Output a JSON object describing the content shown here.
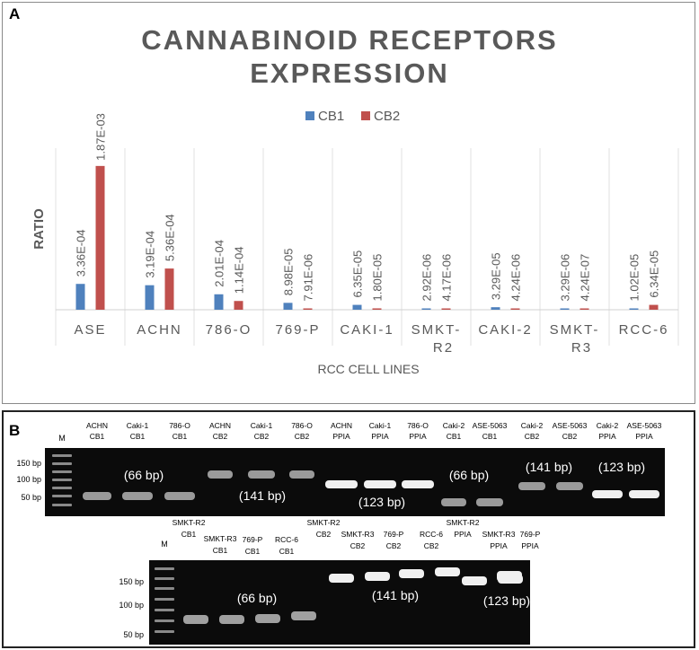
{
  "panel_a": {
    "label": "A",
    "chart_data": {
      "type": "bar",
      "title_lines": [
        "CANNABINOID RECEPTORS",
        "EXPRESSION"
      ],
      "xlabel": "RCC CELL LINES",
      "ylabel": "RATIO",
      "grid": "vertical category separators",
      "legend_position": "top-center",
      "categories": [
        "ASE",
        "ACHN",
        "786-O",
        "769-P",
        "CAKI-1",
        "SMKT-R2",
        "CAKI-2",
        "SMKT-R3",
        "RCC-6"
      ],
      "category_display": [
        [
          "ASE"
        ],
        [
          "ACHN"
        ],
        [
          "786-O"
        ],
        [
          "769-P"
        ],
        [
          "CAKI-1"
        ],
        [
          "SMKT-",
          "R2"
        ],
        [
          "CAKI-2"
        ],
        [
          "SMKT-",
          "R3"
        ],
        [
          "RCC-6"
        ]
      ],
      "ylim": [
        0,
        0.00188
      ],
      "series": [
        {
          "name": "CB1",
          "color": "#4f81bd",
          "values": [
            0.000336,
            0.000319,
            0.000201,
            8.98e-05,
            6.35e-05,
            2.92e-06,
            3.29e-05,
            3.29e-06,
            1.02e-05
          ],
          "labels": [
            "3.36E-04",
            "3.19E-04",
            "2.01E-04",
            "8.98E-05",
            "6.35E-05",
            "2.92E-06",
            "3.29E-05",
            "3.29E-06",
            "1.02E-05"
          ]
        },
        {
          "name": "CB2",
          "color": "#c0504d",
          "values": [
            0.00187,
            0.000536,
            0.000114,
            7.91e-06,
            1.8e-05,
            4.17e-06,
            4.24e-06,
            4.24e-07,
            6.34e-05
          ],
          "labels": [
            "1.87E-03",
            "5.36E-04",
            "1.14E-04",
            "7.91E-06",
            "1.80E-05",
            "4.17E-06",
            "4.24E-06",
            "4.24E-07",
            "6.34E-05"
          ]
        }
      ]
    }
  },
  "panel_b": {
    "label": "B",
    "gel1": {
      "marker": "M",
      "ladder": [
        "150 bp",
        "100 bp",
        "50 bp"
      ],
      "lanes": [
        [
          "ACHN",
          "CB1"
        ],
        [
          "Caki-1",
          "CB1"
        ],
        [
          "786-O",
          "CB1"
        ],
        [
          "ACHN",
          "CB2"
        ],
        [
          "Caki-1",
          "CB2"
        ],
        [
          "786-O",
          "CB2"
        ],
        [
          "ACHN",
          "PPIA"
        ],
        [
          "Caki-1",
          "PPIA"
        ],
        [
          "786-O",
          "PPIA"
        ],
        [
          "Caki-2",
          "CB1"
        ],
        [
          "ASE-5063",
          "CB1"
        ],
        [
          "Caki-2",
          "CB2"
        ],
        [
          "ASE-5063",
          "CB2"
        ],
        [
          "Caki-2",
          "PPIA"
        ],
        [
          "ASE-5063",
          "PPIA"
        ]
      ],
      "sizes": [
        "(66 bp)",
        "(141 bp)",
        "(123 bp)",
        "(66 bp)",
        "(141 bp)",
        "(123 bp)"
      ]
    },
    "gel2": {
      "marker": "M",
      "ladder": [
        "150 bp",
        "100 bp",
        "50 bp"
      ],
      "lanes": [
        [
          "SMKT-R2",
          "CB1"
        ],
        [
          "SMKT-R3",
          "CB1"
        ],
        [
          "769-P",
          "CB1"
        ],
        [
          "RCC-6",
          "CB1"
        ],
        [
          "SMKT-R2",
          "CB2"
        ],
        [
          "SMKT-R3",
          "CB2"
        ],
        [
          "769-P",
          "CB2"
        ],
        [
          "RCC-6",
          "CB2"
        ],
        [
          "SMKT-R2",
          "PPIA"
        ],
        [
          "SMKT-R3",
          "PPIA"
        ],
        [
          "769-P",
          "PPIA"
        ]
      ],
      "sizes": [
        "(66 bp)",
        "(141 bp)",
        "(123 bp)"
      ]
    }
  }
}
